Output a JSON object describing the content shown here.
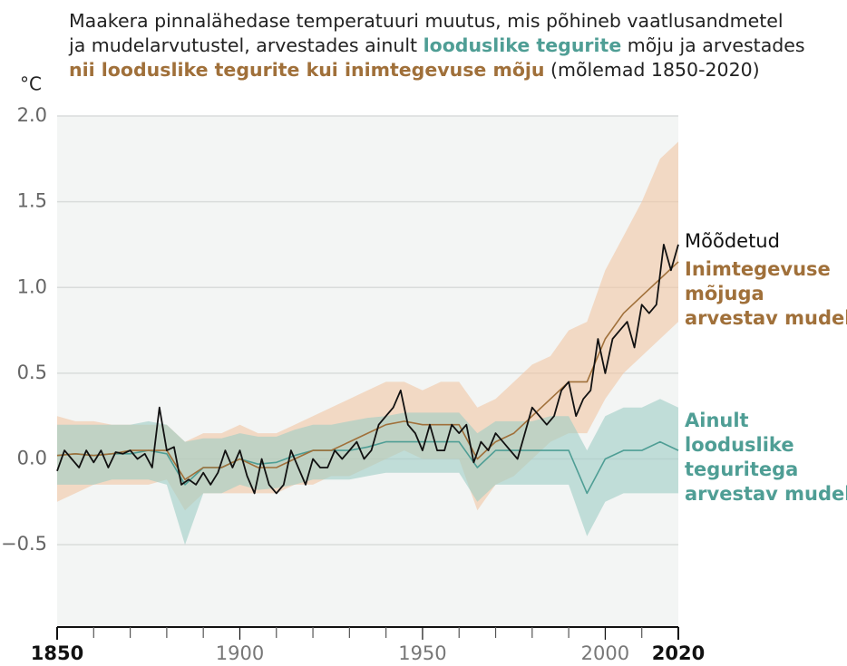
{
  "chart_data": {
    "type": "line",
    "title_lines": [
      [
        {
          "text": "Maakera pinnalähedase temperatuuri muutus, mis põhineb vaatlusandmetel"
        }
      ],
      [
        {
          "text": "ja mudelarvutustel, arvestades ainult "
        },
        {
          "text": "looduslike tegurite",
          "color": "#4f9e95"
        },
        {
          "text": " mõju ja arvestades"
        }
      ],
      [
        {
          "text": "nii looduslike tegurite kui inimtegevuse mõju",
          "color": "#a0703a"
        },
        {
          "text": " (mõlemad 1850-2020)"
        }
      ]
    ],
    "y_unit": "°C",
    "xlim": [
      1850,
      2020
    ],
    "ylim": [
      -0.98,
      2.0
    ],
    "xticks": [
      1850,
      1900,
      1950,
      2000,
      2020
    ],
    "xticks_emphasized": [
      1850,
      2020
    ],
    "xminor_ticks": [
      1860,
      1870,
      1880,
      1890,
      1910,
      1920,
      1930,
      1940,
      1960,
      1970,
      1980,
      1990,
      2010
    ],
    "yticks": [
      {
        "value": -0.5,
        "label": "−0.5"
      },
      {
        "value": 0,
        "label": "0.0"
      },
      0.5,
      {
        "value": 1,
        "label": "1.0"
      },
      1.5,
      {
        "value": 2,
        "label": "2.0"
      }
    ],
    "grid": true,
    "series": [
      {
        "name": [
          "Mõõdetud"
        ],
        "color": "#111111",
        "x": [
          1850,
          1852,
          1854,
          1856,
          1858,
          1860,
          1862,
          1864,
          1866,
          1868,
          1870,
          1872,
          1874,
          1876,
          1878,
          1880,
          1882,
          1884,
          1886,
          1888,
          1890,
          1892,
          1894,
          1896,
          1898,
          1900,
          1902,
          1904,
          1906,
          1908,
          1910,
          1912,
          1914,
          1916,
          1918,
          1920,
          1922,
          1924,
          1926,
          1928,
          1930,
          1932,
          1934,
          1936,
          1938,
          1940,
          1942,
          1944,
          1946,
          1948,
          1950,
          1952,
          1954,
          1956,
          1958,
          1960,
          1962,
          1964,
          1966,
          1968,
          1970,
          1972,
          1974,
          1976,
          1978,
          1980,
          1982,
          1984,
          1986,
          1988,
          1990,
          1992,
          1994,
          1996,
          1998,
          2000,
          2002,
          2004,
          2006,
          2008,
          2010,
          2012,
          2014,
          2016,
          2018,
          2020
        ],
        "values": [
          -0.07,
          0.05,
          0.0,
          -0.05,
          0.05,
          -0.02,
          0.05,
          -0.05,
          0.04,
          0.03,
          0.05,
          0.0,
          0.03,
          -0.05,
          0.3,
          0.05,
          0.07,
          -0.15,
          -0.12,
          -0.15,
          -0.08,
          -0.15,
          -0.08,
          0.05,
          -0.05,
          0.05,
          -0.1,
          -0.2,
          0.0,
          -0.15,
          -0.2,
          -0.15,
          0.05,
          -0.05,
          -0.15,
          0.0,
          -0.05,
          -0.05,
          0.05,
          0.0,
          0.05,
          0.1,
          0.0,
          0.05,
          0.2,
          0.25,
          0.3,
          0.4,
          0.2,
          0.15,
          0.05,
          0.2,
          0.05,
          0.05,
          0.2,
          0.15,
          0.2,
          -0.02,
          0.1,
          0.05,
          0.15,
          0.1,
          0.05,
          0.0,
          0.15,
          0.3,
          0.25,
          0.2,
          0.25,
          0.4,
          0.45,
          0.25,
          0.35,
          0.4,
          0.7,
          0.5,
          0.7,
          0.75,
          0.8,
          0.65,
          0.9,
          0.85,
          0.9,
          1.25,
          1.1,
          1.25
        ]
      },
      {
        "name": [
          "Inimtegevuse",
          "mõjuga",
          "arvestav mudel"
        ],
        "color": "#a0703a",
        "band_color": "#f2c7a3",
        "x": [
          1850,
          1855,
          1860,
          1865,
          1870,
          1875,
          1880,
          1885,
          1890,
          1895,
          1900,
          1905,
          1910,
          1915,
          1920,
          1925,
          1930,
          1935,
          1940,
          1945,
          1950,
          1955,
          1960,
          1965,
          1970,
          1975,
          1980,
          1985,
          1990,
          1995,
          2000,
          2005,
          2010,
          2015,
          2020
        ],
        "values": [
          0.02,
          0.03,
          0.02,
          0.03,
          0.05,
          0.05,
          0.05,
          -0.12,
          -0.05,
          -0.05,
          0.0,
          -0.05,
          -0.05,
          0.0,
          0.05,
          0.05,
          0.1,
          0.15,
          0.2,
          0.22,
          0.2,
          0.2,
          0.2,
          0.0,
          0.1,
          0.15,
          0.25,
          0.35,
          0.45,
          0.45,
          0.7,
          0.85,
          0.95,
          1.05,
          1.15
        ],
        "low": [
          -0.25,
          -0.2,
          -0.15,
          -0.15,
          -0.15,
          -0.15,
          -0.12,
          -0.3,
          -0.2,
          -0.2,
          -0.2,
          -0.2,
          -0.2,
          -0.15,
          -0.15,
          -0.1,
          -0.1,
          -0.05,
          0.0,
          0.05,
          0.0,
          0.0,
          0.0,
          -0.3,
          -0.15,
          -0.1,
          0.0,
          0.1,
          0.15,
          0.15,
          0.35,
          0.5,
          0.6,
          0.7,
          0.8
        ],
        "high": [
          0.25,
          0.22,
          0.22,
          0.2,
          0.2,
          0.2,
          0.2,
          0.1,
          0.15,
          0.15,
          0.2,
          0.15,
          0.15,
          0.2,
          0.25,
          0.3,
          0.35,
          0.4,
          0.45,
          0.45,
          0.4,
          0.45,
          0.45,
          0.3,
          0.35,
          0.45,
          0.55,
          0.6,
          0.75,
          0.8,
          1.1,
          1.3,
          1.5,
          1.75,
          1.85
        ]
      },
      {
        "name": [
          "Ainult",
          "looduslike",
          "teguritega",
          "arvestav mudel"
        ],
        "color": "#4f9e95",
        "band_color": "#9fcdc5",
        "x": [
          1850,
          1855,
          1860,
          1865,
          1870,
          1875,
          1880,
          1885,
          1890,
          1895,
          1900,
          1905,
          1910,
          1915,
          1920,
          1925,
          1930,
          1935,
          1940,
          1945,
          1950,
          1955,
          1960,
          1965,
          1970,
          1975,
          1980,
          1985,
          1990,
          1995,
          2000,
          2005,
          2010,
          2015,
          2020
        ],
        "values": [
          0.02,
          0.03,
          0.02,
          0.03,
          0.03,
          0.05,
          0.03,
          -0.15,
          -0.05,
          -0.05,
          0.0,
          -0.03,
          -0.02,
          0.02,
          0.05,
          0.05,
          0.05,
          0.07,
          0.1,
          0.1,
          0.1,
          0.1,
          0.1,
          -0.05,
          0.05,
          0.05,
          0.05,
          0.05,
          0.05,
          -0.2,
          0.0,
          0.05,
          0.05,
          0.1,
          0.05
        ],
        "low": [
          -0.15,
          -0.15,
          -0.15,
          -0.12,
          -0.12,
          -0.12,
          -0.15,
          -0.5,
          -0.2,
          -0.2,
          -0.15,
          -0.18,
          -0.17,
          -0.15,
          -0.12,
          -0.12,
          -0.12,
          -0.1,
          -0.08,
          -0.08,
          -0.08,
          -0.08,
          -0.08,
          -0.25,
          -0.15,
          -0.15,
          -0.15,
          -0.15,
          -0.15,
          -0.45,
          -0.25,
          -0.2,
          -0.2,
          -0.2,
          -0.2
        ],
        "high": [
          0.2,
          0.2,
          0.2,
          0.2,
          0.2,
          0.22,
          0.2,
          0.1,
          0.12,
          0.12,
          0.15,
          0.13,
          0.13,
          0.17,
          0.2,
          0.2,
          0.22,
          0.24,
          0.25,
          0.27,
          0.27,
          0.27,
          0.27,
          0.15,
          0.22,
          0.22,
          0.22,
          0.25,
          0.25,
          0.05,
          0.25,
          0.3,
          0.3,
          0.35,
          0.3
        ]
      }
    ]
  }
}
